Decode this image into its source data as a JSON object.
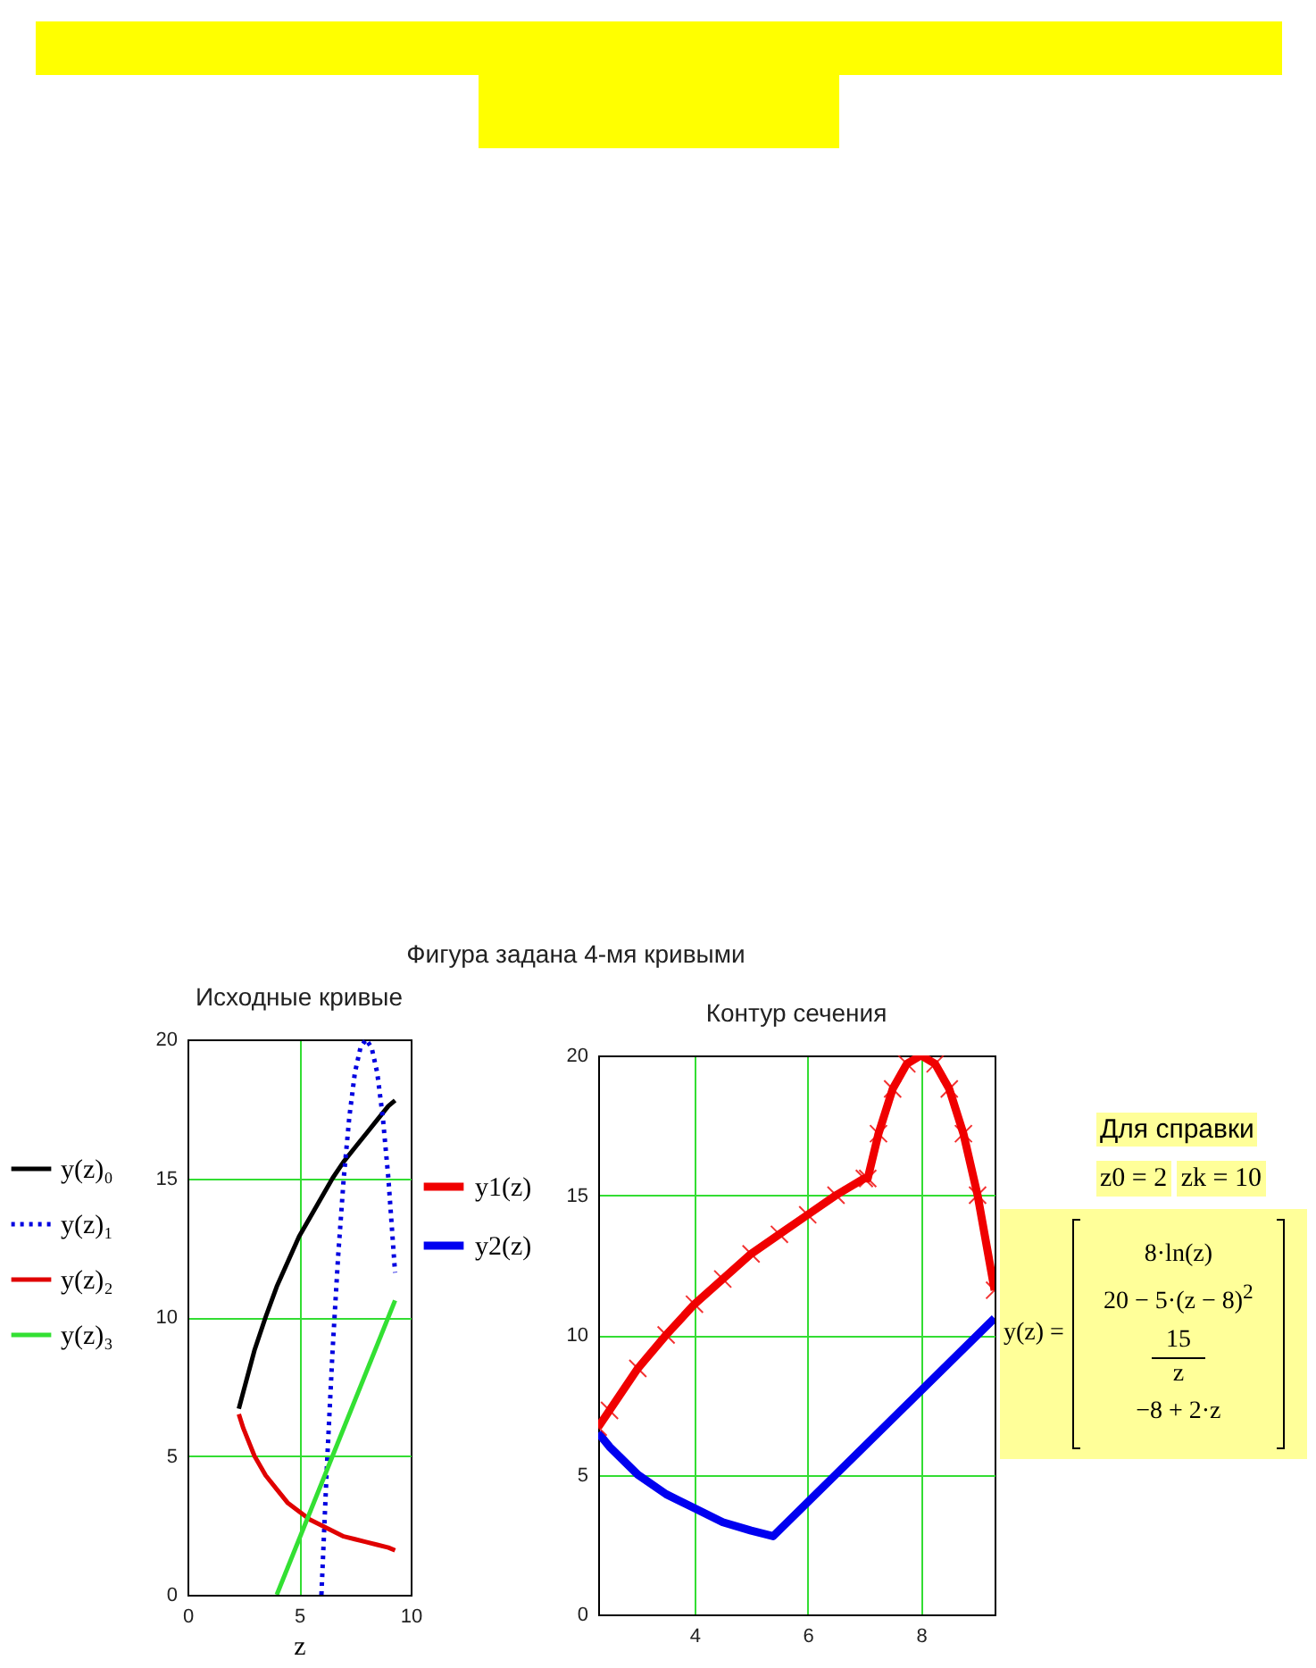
{
  "chart_data": [
    {
      "type": "line",
      "title": "Фигура задана 4-мя кривыми",
      "subtitle": "Исходные кривые",
      "xlabel": "z",
      "xlim": [
        0,
        10
      ],
      "xticks": [
        0,
        5,
        10
      ],
      "ylim": [
        0,
        20
      ],
      "yticks": [
        0,
        5,
        10,
        15,
        20
      ],
      "grid": true,
      "legend": "left",
      "series": [
        {
          "name": "y(z)₀",
          "color": "#000000",
          "line_style": "solid",
          "x": [
            2.3,
            2.5,
            3,
            3.5,
            4,
            4.5,
            5,
            5.5,
            6,
            6.5,
            7,
            7.5,
            8,
            8.5,
            9,
            9.3
          ],
          "values": [
            6.7,
            7.3,
            8.8,
            10.0,
            11.1,
            12.0,
            12.9,
            13.6,
            14.3,
            15.0,
            15.6,
            16.1,
            16.6,
            17.1,
            17.6,
            17.8
          ]
        },
        {
          "name": "y(z)₁",
          "color": "#0000e0",
          "line_style": "dotted",
          "x": [
            6,
            6.25,
            6.5,
            6.75,
            7,
            7.25,
            7.5,
            7.75,
            8,
            8.25,
            8.5,
            8.75,
            9,
            9.3
          ],
          "values": [
            0,
            4.7,
            8.8,
            12.2,
            15.0,
            17.2,
            18.8,
            19.7,
            20,
            19.7,
            18.8,
            17.2,
            15.0,
            11.6
          ]
        },
        {
          "name": "y(z)₂",
          "color": "#e00000",
          "line_style": "solid",
          "x": [
            2.3,
            2.5,
            3,
            3.5,
            4,
            4.5,
            5,
            5.5,
            6,
            6.5,
            7,
            7.5,
            8,
            8.5,
            9,
            9.3
          ],
          "values": [
            6.5,
            6.0,
            5.0,
            4.3,
            3.8,
            3.3,
            3.0,
            2.7,
            2.5,
            2.3,
            2.1,
            2.0,
            1.9,
            1.8,
            1.7,
            1.6
          ]
        },
        {
          "name": "y(z)₃",
          "color": "#33e033",
          "line_style": "solid",
          "x": [
            4,
            9.3
          ],
          "values": [
            0,
            10.6
          ]
        }
      ]
    },
    {
      "type": "line",
      "title": "Контур сечения",
      "xlim": [
        2.3,
        9.3
      ],
      "xticks": [
        4,
        6,
        8
      ],
      "ylim": [
        0,
        20
      ],
      "yticks": [
        0,
        5,
        10,
        15,
        20
      ],
      "grid": true,
      "legend": "left",
      "annotations": [
        "Для справки",
        "z0 = 2",
        "zk = 10",
        "y(z) =",
        "8·ln(z)",
        "20 − 5·(z − 8)$^{2}$",
        "15",
        "z",
        "−8 + 2·z"
      ],
      "series": [
        {
          "name": "y1(z)",
          "color": "#f00000",
          "line_style": "solid",
          "marker": "cross",
          "x": [
            2.3,
            2.5,
            3,
            3.5,
            4,
            4.5,
            5,
            5.5,
            6,
            6.5,
            7,
            7.06,
            7.25,
            7.5,
            7.75,
            8,
            8.25,
            8.5,
            8.75,
            9,
            9.3
          ],
          "values": [
            6.7,
            7.3,
            8.8,
            10.0,
            11.1,
            12.0,
            12.9,
            13.6,
            14.3,
            15.0,
            15.6,
            15.6,
            17.2,
            18.8,
            19.7,
            20,
            19.7,
            18.8,
            17.2,
            15.0,
            11.6
          ]
        },
        {
          "name": "y2(z)",
          "color": "#0000f0",
          "line_style": "solid",
          "x": [
            2.3,
            2.5,
            3,
            3.5,
            4,
            4.5,
            5,
            5.39,
            9.3
          ],
          "values": [
            6.5,
            6.0,
            5.0,
            4.3,
            3.8,
            3.3,
            3.0,
            2.8,
            10.6
          ]
        }
      ]
    }
  ]
}
